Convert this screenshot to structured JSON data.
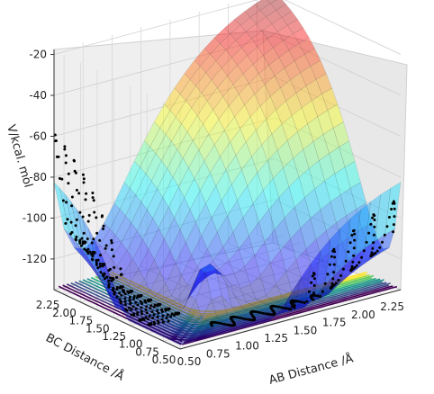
{
  "chart_data": {
    "type": "surface3d",
    "description_free": true,
    "xlabel": "AB Distance /Å",
    "ylabel": "BC Distance /Å",
    "zlabel": "V/kcal. mol",
    "x_ticks": [
      "0.50",
      "0.75",
      "1.00",
      "1.25",
      "1.50",
      "1.75",
      "2.00",
      "2.25"
    ],
    "y_ticks": [
      "0.50",
      "0.75",
      "1.00",
      "1.25",
      "1.50",
      "1.75",
      "2.00",
      "2.25"
    ],
    "z_ticks": [
      "-20",
      "-40",
      "-60",
      "-80",
      "-100",
      "-120"
    ],
    "z_tick_values": [
      -20,
      -40,
      -60,
      -80,
      -100,
      -120
    ],
    "xlim": [
      0.5,
      2.4
    ],
    "ylim": [
      0.5,
      2.4
    ],
    "zlim": [
      -135,
      -18
    ],
    "grid": true,
    "surface_colormap": "jet",
    "contour_colormap": "viridis",
    "trajectory_color": "#000000",
    "trajectory_oscillations": 11
  }
}
